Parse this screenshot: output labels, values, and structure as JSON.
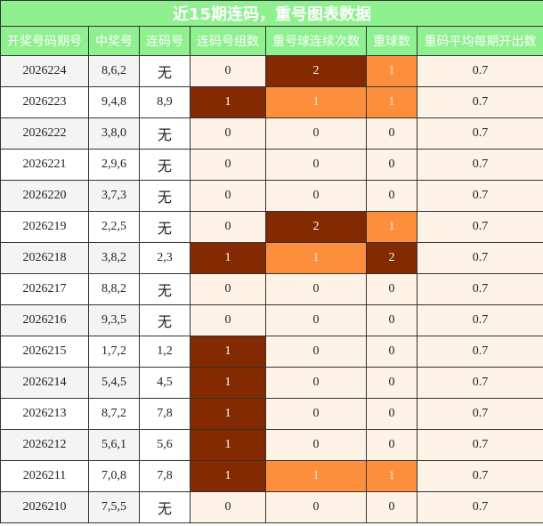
{
  "header": {
    "title": "近15期连码，重号图表数据"
  },
  "table": {
    "columns": [
      "开奖号码期号",
      "中奖号",
      "连码号",
      "连码号组数",
      "重号球连续次数",
      "重球数",
      "重码平均每期开出数"
    ],
    "rows": [
      [
        "2026224",
        "8,6,2",
        "无",
        "0",
        "2",
        "1",
        "0.7"
      ],
      [
        "2026223",
        "9,4,8",
        "8,9",
        "1",
        "1",
        "1",
        "0.7"
      ],
      [
        "2026222",
        "3,8,0",
        "无",
        "0",
        "0",
        "0",
        "0.7"
      ],
      [
        "2026221",
        "2,9,6",
        "无",
        "0",
        "0",
        "0",
        "0.7"
      ],
      [
        "2026220",
        "3,7,3",
        "无",
        "0",
        "0",
        "0",
        "0.7"
      ],
      [
        "2026219",
        "2,2,5",
        "无",
        "0",
        "2",
        "1",
        "0.7"
      ],
      [
        "2026218",
        "3,8,2",
        "2,3",
        "1",
        "1",
        "2",
        "0.7"
      ],
      [
        "2026217",
        "8,8,2",
        "无",
        "0",
        "0",
        "0",
        "0.7"
      ],
      [
        "2026216",
        "9,3,5",
        "无",
        "0",
        "0",
        "0",
        "0.7"
      ],
      [
        "2026215",
        "1,7,2",
        "1,2",
        "1",
        "0",
        "0",
        "0.7"
      ],
      [
        "2026214",
        "5,4,5",
        "4,5",
        "1",
        "0",
        "0",
        "0.7"
      ],
      [
        "2026213",
        "8,7,2",
        "7,8",
        "1",
        "0",
        "0",
        "0.7"
      ],
      [
        "2026212",
        "5,6,1",
        "5,6",
        "1",
        "0",
        "0",
        "0.7"
      ],
      [
        "2026211",
        "7,0,8",
        "7,8",
        "1",
        "1",
        "1",
        "0.7"
      ],
      [
        "2026210",
        "7,5,5",
        "无",
        "0",
        "0",
        "0",
        "0.7"
      ]
    ]
  }
}
